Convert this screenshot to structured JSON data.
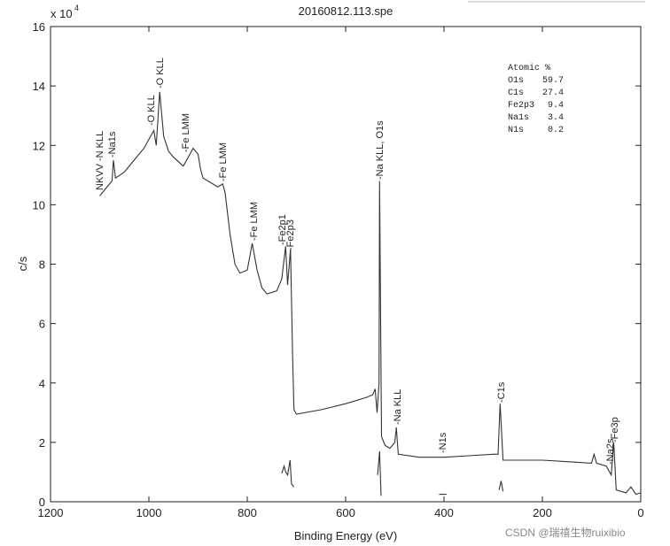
{
  "chart_data": {
    "type": "line",
    "title": "20160812.113.spe",
    "y_multiplier": {
      "base": "x 10",
      "exponent": "4"
    },
    "x_label": "Binding Energy (eV)",
    "y_label": "c/s",
    "xlim": [
      1200,
      0
    ],
    "ylim": [
      0,
      16
    ],
    "xticks": [
      1200,
      1000,
      800,
      600,
      400,
      200,
      0
    ],
    "yticks": [
      0,
      2,
      4,
      6,
      8,
      10,
      12,
      14,
      16
    ],
    "series": [
      {
        "color": "#333333",
        "x": [
          1100,
          1090,
          1080,
          1075,
          1072,
          1068,
          1050,
          1030,
          1010,
          1000,
          990,
          985,
          978,
          970,
          960,
          950,
          930,
          920,
          910,
          900,
          895,
          890,
          880,
          860,
          850,
          845,
          835,
          825,
          815,
          800,
          790,
          780,
          770,
          760,
          740,
          730,
          722,
          718,
          712,
          708,
          705,
          700,
          650,
          600,
          560,
          545,
          540,
          536,
          532,
          531,
          527,
          520,
          510,
          500,
          497,
          493,
          450,
          400,
          350,
          300,
          290,
          286,
          280,
          250,
          200,
          150,
          100,
          95,
          90,
          70,
          60,
          55,
          50,
          40,
          30,
          20,
          10,
          0
        ],
        "values": [
          10.3,
          10.5,
          10.7,
          10.8,
          11.5,
          10.9,
          11.1,
          11.5,
          11.9,
          12.2,
          12.5,
          12.0,
          13.8,
          12.3,
          11.8,
          11.6,
          11.3,
          11.6,
          11.9,
          11.7,
          11.2,
          10.9,
          10.8,
          10.6,
          10.7,
          10.4,
          9.0,
          8.0,
          7.7,
          7.8,
          8.7,
          7.8,
          7.2,
          7.0,
          7.1,
          7.5,
          8.6,
          7.3,
          8.5,
          5.0,
          3.1,
          2.95,
          3.1,
          3.3,
          3.5,
          3.6,
          3.8,
          3.0,
          4.0,
          10.8,
          2.2,
          1.9,
          1.8,
          2.0,
          2.5,
          1.6,
          1.5,
          1.5,
          1.55,
          1.6,
          1.6,
          3.3,
          1.4,
          1.4,
          1.4,
          1.35,
          1.3,
          1.6,
          1.3,
          1.2,
          0.9,
          2.0,
          0.4,
          0.35,
          0.3,
          0.5,
          0.25,
          0.3
        ]
      },
      {
        "color": "#333333",
        "x": [
          730,
          725,
          722,
          718,
          713,
          710,
          705,
          620,
          535,
          531,
          528,
          470,
          410,
          395,
          340,
          288,
          284,
          280
        ],
        "values": [
          0.95,
          1.2,
          1.0,
          0.9,
          1.4,
          0.6,
          0.5,
          null,
          0.9,
          1.7,
          0.2,
          null,
          0.25,
          0.25,
          null,
          0.4,
          0.7,
          0.35
        ]
      }
    ],
    "annotations": [
      "NKVV -N KLL",
      "-Na1s",
      "-O KLL",
      "-O KLL",
      "-Fe LMM",
      "-Fe LMM",
      "-Fe LMM",
      "-Fe2p1",
      "-Fe2p3",
      "-Na KLL, O1s",
      "-Na KLL",
      "-N1s",
      "-C1s",
      "-Na2s",
      "-Fe3p"
    ],
    "atomic_table": {
      "header": "Atomic %",
      "rows": [
        [
          "O1s",
          "59.7"
        ],
        [
          "C1s",
          "27.4"
        ],
        [
          "Fe2p3",
          "9.4"
        ],
        [
          "Na1s",
          "3.4"
        ],
        [
          "N1s",
          "0.2"
        ]
      ]
    },
    "watermark": "CSDN @瑞禧生物ruixibio"
  }
}
